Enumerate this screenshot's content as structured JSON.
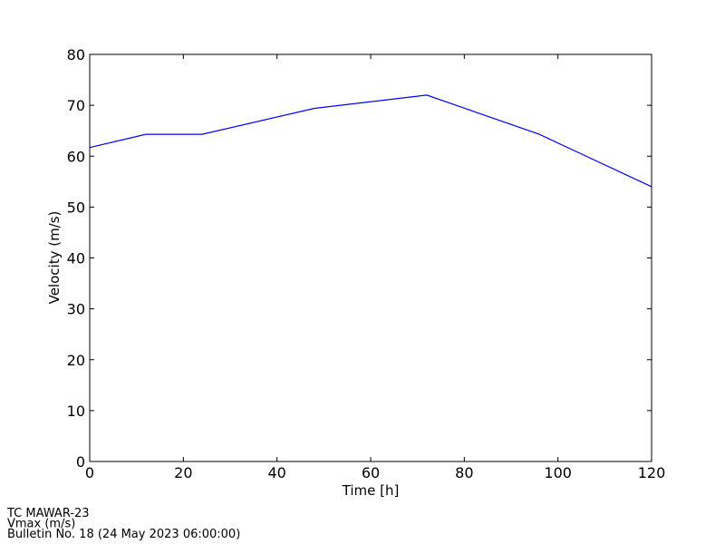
{
  "chart_data": {
    "type": "line",
    "x_label": "Time [h]",
    "y_label": "Velocity (m/s)",
    "x": [
      0,
      12,
      24,
      48,
      72,
      96,
      120
    ],
    "series": [
      {
        "color": "#0000ff",
        "values": [
          61.7,
          64.3,
          64.3,
          69.4,
          72.0,
          64.3,
          54.0
        ]
      }
    ],
    "xlim": [
      0,
      120
    ],
    "xticks": [
      0,
      20,
      40,
      60,
      80,
      100,
      120
    ],
    "ylim": [
      0,
      80
    ],
    "yticks": [
      0,
      10,
      20,
      30,
      40,
      50,
      60,
      70,
      80
    ],
    "grid": false,
    "annotations": [
      "TC MAWAR-23",
      "Vmax (m/s)",
      "Bulletin No. 18 (24 May 2023  06:00:00)"
    ]
  }
}
